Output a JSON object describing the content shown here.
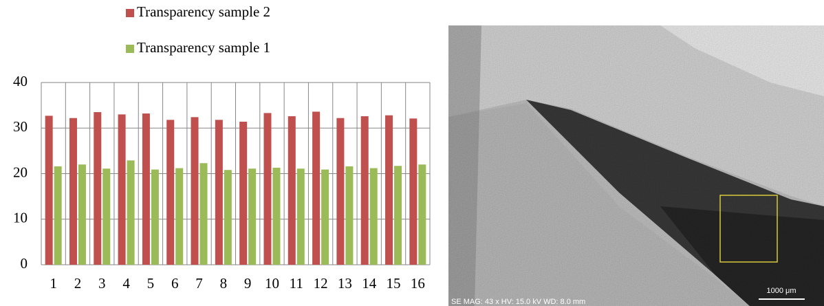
{
  "chart_data": {
    "type": "bar",
    "categories": [
      "1",
      "2",
      "3",
      "4",
      "5",
      "6",
      "7",
      "8",
      "9",
      "10",
      "11",
      "12",
      "13",
      "14",
      "15",
      "16"
    ],
    "series": [
      {
        "name": "Transparency sample 2",
        "color": "#c0504d",
        "values": [
          32.7,
          32.2,
          33.5,
          33.0,
          33.2,
          31.8,
          32.4,
          31.8,
          31.4,
          33.3,
          32.6,
          33.6,
          32.2,
          32.6,
          32.8,
          32.1
        ]
      },
      {
        "name": "Transparency sample 1",
        "color": "#9bbb59",
        "values": [
          21.6,
          22.0,
          21.1,
          22.9,
          20.9,
          21.2,
          22.3,
          20.8,
          21.1,
          21.3,
          21.1,
          20.9,
          21.6,
          21.2,
          21.7,
          22.0
        ]
      }
    ],
    "ylim": [
      0,
      40
    ],
    "yticks": [
      0,
      10,
      20,
      30,
      40
    ],
    "grid": true,
    "legend": "top"
  },
  "micrograph": {
    "info": "SE MAG: 43 x HV: 15.0 kV WD: 8.0 mm",
    "scale_bar": "1000 μm"
  }
}
